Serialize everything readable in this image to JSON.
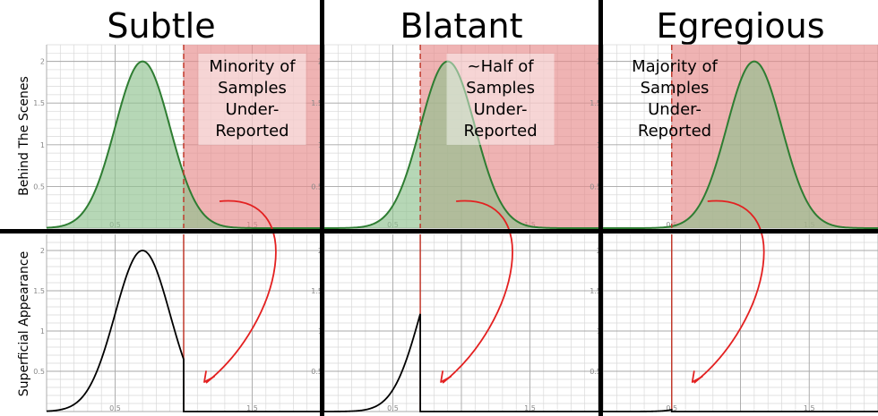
{
  "columns": [
    {
      "title": "Subtle",
      "annotation": [
        "Minority of",
        "Samples",
        "Under-",
        "Reported"
      ],
      "cutoff": 1.0
    },
    {
      "title": "Blatant",
      "annotation": [
        "~Half of",
        "Samples",
        "Under-",
        "Reported"
      ],
      "cutoff": 0.7
    },
    {
      "title": "Egregious",
      "annotation": [
        "Majority of",
        "Samples",
        "Under-",
        "Reported"
      ],
      "cutoff": 0.5
    }
  ],
  "row_labels": [
    "Behind The Scenes",
    "Superficial Appearance"
  ],
  "chart_data": {
    "type": "area",
    "xlim": [
      0,
      2
    ],
    "ylim": [
      0,
      2.2
    ],
    "x_ticks": [
      0.5,
      1.5
    ],
    "x_tick_labels": [
      "0.5",
      "1.5"
    ],
    "y_ticks": [
      0.5,
      1,
      1.5,
      2
    ],
    "y_tick_labels": [
      "0.5",
      "1",
      "1.5",
      "2"
    ],
    "grid": true,
    "distribution": {
      "peak": 2.0,
      "sd": 0.2,
      "means": [
        0.7,
        0.9,
        1.1
      ]
    },
    "colors": {
      "fill": "#8fc28f",
      "line": "#2e7d32",
      "shade": "#e68a8a",
      "cutoff": "#c0392b",
      "arrow": "#e32020",
      "truncated": "#000000",
      "divider": "#000000"
    }
  }
}
